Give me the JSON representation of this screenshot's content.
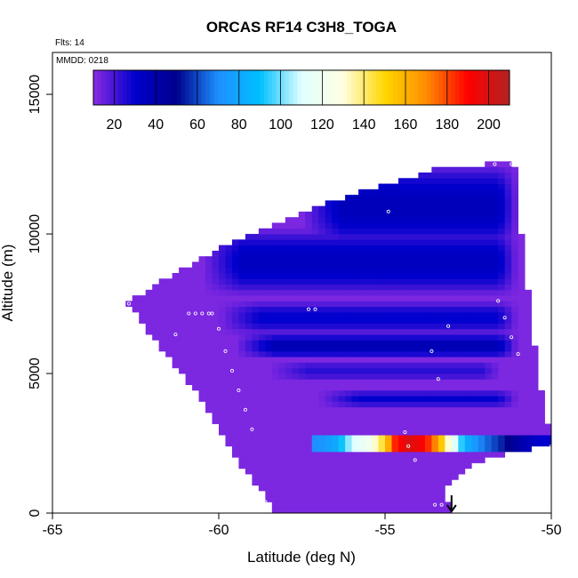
{
  "chart_data": {
    "type": "heatmap",
    "title": "ORCAS RF14 C3H8_TOGA",
    "subtitle_flights": "Flts: 14",
    "date_label": "MMDD: 0218",
    "xlabel": "Latitude (deg N)",
    "ylabel": "Altitude (m)",
    "xlim": [
      -65,
      -50
    ],
    "ylim": [
      0,
      16500
    ],
    "x_ticks": [
      -65,
      -60,
      -55,
      -50
    ],
    "x_tick_labels": [
      "-65",
      "-60",
      "-55",
      "-50"
    ],
    "y_ticks": [
      0,
      5000,
      10000,
      15000
    ],
    "y_tick_labels": [
      "0",
      "5000",
      "10000",
      "15000"
    ],
    "colorbar": {
      "range": [
        10,
        210
      ],
      "ticks": [
        20,
        40,
        60,
        80,
        100,
        120,
        140,
        160,
        180,
        200
      ],
      "tick_labels": [
        "20",
        "40",
        "60",
        "80",
        "100",
        "120",
        "140",
        "160",
        "180",
        "200"
      ],
      "colors": [
        "#8a2be2",
        "#0000cd",
        "#00008b",
        "#1e90ff",
        "#00bfff",
        "#e0ffff",
        "#ffffe0",
        "#ffd700",
        "#ff8c00",
        "#ff0000",
        "#b22222"
      ]
    },
    "field_boundary": {
      "left_edge": [
        [
          -62.7,
          7500
        ],
        [
          -61.8,
          6000
        ],
        [
          -60.5,
          4000
        ],
        [
          -59.5,
          2000
        ],
        [
          -58.7,
          800
        ],
        [
          -58.3,
          0
        ]
      ],
      "top_edge": [
        [
          -62.7,
          7600
        ],
        [
          -60.0,
          9500
        ],
        [
          -57.5,
          10800
        ],
        [
          -55.5,
          11600
        ],
        [
          -53.5,
          12300
        ],
        [
          -52.0,
          12500
        ],
        [
          -51.1,
          12500
        ]
      ],
      "right_edge": [
        [
          -51.1,
          12500
        ],
        [
          -50.9,
          10000
        ],
        [
          -50.6,
          7000
        ],
        [
          -50.4,
          5000
        ],
        [
          -50.0,
          2500
        ],
        [
          -52.3,
          1800
        ],
        [
          -53.2,
          800
        ],
        [
          -53.0,
          0
        ]
      ]
    },
    "background_value": 12,
    "bands": [
      {
        "alt_center": 11000,
        "alt_halfwidth": 1500,
        "lat_min": -57.5,
        "lat_max": -51.0,
        "value": 36
      },
      {
        "alt_center": 9000,
        "alt_halfwidth": 1200,
        "lat_min": -60.5,
        "lat_max": -51.0,
        "value": 34
      },
      {
        "alt_center": 7000,
        "alt_halfwidth": 600,
        "lat_min": -60.0,
        "lat_max": -51.0,
        "value": 30
      },
      {
        "alt_center": 6000,
        "alt_halfwidth": 450,
        "lat_min": -59.5,
        "lat_max": -51.0,
        "value": 38
      },
      {
        "alt_center": 5100,
        "alt_halfwidth": 350,
        "lat_min": -58.5,
        "lat_max": -51.5,
        "value": 24
      },
      {
        "alt_center": 4100,
        "alt_halfwidth": 300,
        "lat_min": -57.0,
        "lat_max": -51.0,
        "value": 30
      }
    ],
    "plume": {
      "alt_min": 2300,
      "alt_max": 2700,
      "lat_min": -57.2,
      "lat_max": -50.0,
      "profile": [
        {
          "lat": -57.0,
          "value": 70
        },
        {
          "lat": -56.5,
          "value": 80
        },
        {
          "lat": -56.0,
          "value": 108
        },
        {
          "lat": -55.5,
          "value": 120
        },
        {
          "lat": -55.0,
          "value": 150
        },
        {
          "lat": -54.7,
          "value": 185
        },
        {
          "lat": -54.3,
          "value": 200
        },
        {
          "lat": -53.8,
          "value": 190
        },
        {
          "lat": -53.4,
          "value": 165
        },
        {
          "lat": -53.0,
          "value": 120
        },
        {
          "lat": -52.6,
          "value": 85
        },
        {
          "lat": -52.2,
          "value": 70
        },
        {
          "lat": -51.5,
          "value": 55
        },
        {
          "lat": -50.9,
          "value": 40
        },
        {
          "lat": -50.4,
          "value": 30
        }
      ]
    },
    "sample_points": [
      [
        -62.7,
        7500
      ],
      [
        -60.9,
        7150
      ],
      [
        -60.7,
        7150
      ],
      [
        -60.5,
        7150
      ],
      [
        -60.3,
        7150
      ],
      [
        -60.2,
        7150
      ],
      [
        -61.3,
        6400
      ],
      [
        -60.0,
        6600
      ],
      [
        -59.8,
        5800
      ],
      [
        -59.6,
        5100
      ],
      [
        -59.4,
        4400
      ],
      [
        -59.2,
        3700
      ],
      [
        -59.0,
        3000
      ],
      [
        -58.6,
        400
      ],
      [
        -57.3,
        7300
      ],
      [
        -57.1,
        7300
      ],
      [
        -55.3,
        11700
      ],
      [
        -54.9,
        10800
      ],
      [
        -54.4,
        2900
      ],
      [
        -54.3,
        2400
      ],
      [
        -54.1,
        1900
      ],
      [
        -53.6,
        5800
      ],
      [
        -53.4,
        4800
      ],
      [
        -53.1,
        6700
      ],
      [
        -53.3,
        300
      ],
      [
        -53.5,
        300
      ],
      [
        -51.7,
        12500
      ],
      [
        -51.2,
        12500
      ],
      [
        -51.6,
        7600
      ],
      [
        -51.4,
        7000
      ],
      [
        -51.2,
        6300
      ],
      [
        -51.0,
        5700
      ],
      [
        -50.0,
        2400
      ]
    ],
    "arrow_marker": {
      "lat": -53.0,
      "direction": "down"
    }
  }
}
